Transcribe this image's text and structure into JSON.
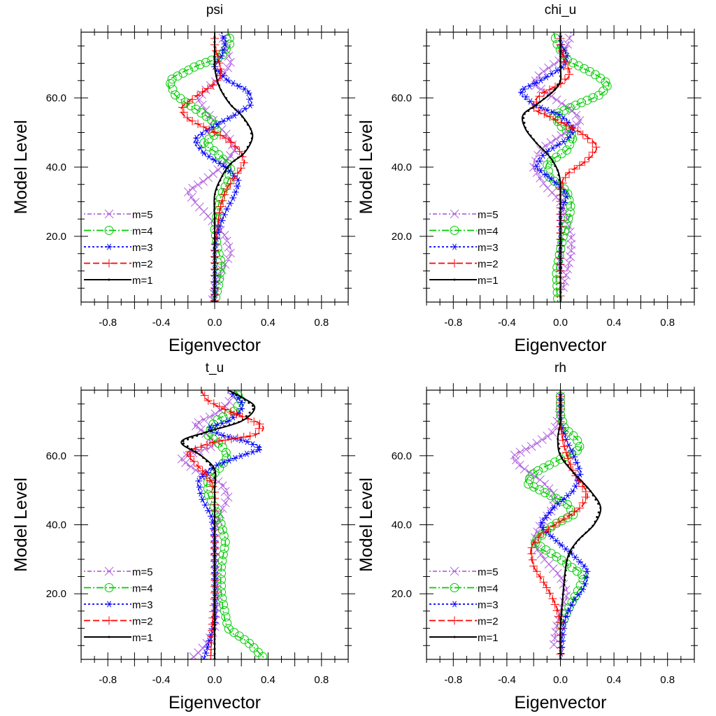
{
  "chart_data": [
    {
      "type": "line",
      "title": "psi",
      "xlabel": "Eigenvector",
      "ylabel": "Model Level",
      "xlim": [
        -1.0,
        1.0
      ],
      "ylim": [
        1,
        79
      ],
      "xticks": [
        "-0.8",
        "-0.4",
        "0.0",
        "0.4",
        "0.8"
      ],
      "yticks": [
        "20.0",
        "40.0",
        "60.0"
      ],
      "legend_placement": "lower-left",
      "series": [
        {
          "name": "m=5",
          "color": "#b266e0",
          "marker": "x",
          "x": [
            0.05,
            0.08,
            0.12,
            0.05,
            -0.05,
            -0.12,
            -0.08,
            0.0,
            0.1,
            0.15,
            0.05,
            -0.08,
            -0.2,
            -0.15,
            -0.03,
            0.08,
            0.12,
            0.05,
            0.0,
            -0.02
          ],
          "y": [
            79,
            75,
            70,
            66,
            63,
            60,
            57,
            53,
            49,
            45,
            40,
            36,
            33,
            30,
            25,
            20,
            15,
            10,
            5,
            1
          ]
        },
        {
          "name": "m=4",
          "color": "#00cc00",
          "marker": "o",
          "x": [
            0.1,
            0.12,
            0.05,
            -0.15,
            -0.34,
            -0.3,
            -0.15,
            0.0,
            0.02,
            -0.08,
            0.02,
            0.12,
            0.1,
            0.05,
            0.02,
            0.0,
            0.02,
            0.05,
            0.03,
            0.0
          ],
          "y": [
            79,
            76,
            72,
            69,
            65,
            61,
            57,
            53,
            50,
            47,
            44,
            40,
            36,
            32,
            27,
            22,
            17,
            12,
            6,
            1
          ]
        },
        {
          "name": "m=3",
          "color": "#0000ff",
          "marker": "*",
          "x": [
            0.05,
            0.08,
            0.05,
            0.0,
            0.1,
            0.25,
            0.27,
            0.15,
            0.0,
            -0.15,
            -0.08,
            0.08,
            0.18,
            0.15,
            0.08,
            0.03,
            0.0,
            0.0,
            0.0,
            0.0
          ],
          "y": [
            79,
            76,
            72,
            69,
            65,
            62,
            58,
            55,
            52,
            48,
            44,
            40,
            36,
            32,
            27,
            22,
            17,
            12,
            6,
            1
          ]
        },
        {
          "name": "m=2",
          "color": "#ff0000",
          "marker": "+",
          "x": [
            0.0,
            0.0,
            0.03,
            0.05,
            0.0,
            -0.12,
            -0.25,
            -0.2,
            -0.05,
            0.1,
            0.2,
            0.22,
            0.15,
            0.08,
            0.04,
            0.02,
            0.0,
            0.0,
            0.0,
            0.0
          ],
          "y": [
            79,
            75,
            71,
            67,
            64,
            61,
            57,
            54,
            51,
            48,
            44,
            41,
            37,
            33,
            28,
            22,
            17,
            12,
            6,
            1
          ]
        },
        {
          "name": "m=1",
          "color": "#000000",
          "marker": ".",
          "x": [
            0.0,
            0.0,
            0.0,
            0.02,
            0.05,
            0.12,
            0.2,
            0.27,
            0.28,
            0.22,
            0.12,
            0.05,
            0.0,
            0.0,
            0.0,
            0.0,
            0.0
          ],
          "y": [
            79,
            74,
            69,
            65,
            62,
            58,
            55,
            51,
            48,
            44,
            41,
            37,
            32,
            25,
            18,
            10,
            1
          ]
        }
      ]
    },
    {
      "type": "line",
      "title": "chi_u",
      "xlabel": "Eigenvector",
      "ylabel": "Model Level",
      "xlim": [
        -1.0,
        1.0
      ],
      "ylim": [
        1,
        79
      ],
      "xticks": [
        "-0.8",
        "-0.4",
        "0.0",
        "0.4",
        "0.8"
      ],
      "yticks": [
        "20.0",
        "40.0",
        "60.0"
      ],
      "legend_placement": "lower-left",
      "series": [
        {
          "name": "m=5",
          "color": "#b266e0",
          "marker": "x",
          "x": [
            0.08,
            0.05,
            0.0,
            -0.15,
            -0.2,
            -0.05,
            0.1,
            0.15,
            0.0,
            -0.15,
            -0.2,
            -0.12,
            0.0,
            0.05,
            0.08,
            0.08,
            0.05,
            0.02
          ],
          "y": [
            79,
            75,
            71,
            67,
            64,
            60,
            56,
            53,
            49,
            45,
            40,
            35,
            30,
            25,
            20,
            15,
            10,
            5
          ]
        },
        {
          "name": "m=4",
          "color": "#00cc00",
          "marker": "o",
          "x": [
            -0.05,
            -0.02,
            0.05,
            0.25,
            0.36,
            0.3,
            0.12,
            -0.05,
            0.0,
            0.1,
            0.05,
            -0.1,
            -0.08,
            0.05,
            0.08,
            0.02,
            -0.03,
            -0.02
          ],
          "y": [
            79,
            75,
            71,
            67,
            64,
            61,
            58,
            55,
            52,
            49,
            45,
            41,
            37,
            33,
            28,
            20,
            10,
            1
          ]
        },
        {
          "name": "m=3",
          "color": "#0000ff",
          "marker": "*",
          "x": [
            0.0,
            0.0,
            0.05,
            0.02,
            -0.15,
            -0.3,
            -0.2,
            0.0,
            0.1,
            0.05,
            -0.12,
            -0.18,
            -0.05,
            0.05,
            0.0,
            0.0,
            0.0
          ],
          "y": [
            79,
            76,
            72,
            69,
            65,
            62,
            58,
            55,
            51,
            48,
            44,
            40,
            36,
            32,
            27,
            20,
            10
          ]
        },
        {
          "name": "m=2",
          "color": "#ff0000",
          "marker": "+",
          "x": [
            0.0,
            0.0,
            0.03,
            0.07,
            0.0,
            -0.15,
            -0.2,
            -0.05,
            0.15,
            0.27,
            0.2,
            0.05,
            0.0,
            0.0,
            0.0,
            0.0,
            0.0
          ],
          "y": [
            79,
            75,
            71,
            67,
            64,
            61,
            57,
            54,
            50,
            46,
            42,
            38,
            34,
            28,
            20,
            10,
            1
          ]
        },
        {
          "name": "m=1",
          "color": "#000000",
          "marker": ".",
          "x": [
            0.0,
            0.0,
            0.0,
            0.0,
            -0.05,
            -0.18,
            -0.28,
            -0.26,
            -0.18,
            -0.08,
            -0.02,
            0.0,
            0.0,
            0.0,
            0.0
          ],
          "y": [
            79,
            74,
            69,
            65,
            62,
            58,
            55,
            51,
            47,
            43,
            39,
            35,
            28,
            15,
            1
          ]
        }
      ]
    },
    {
      "type": "line",
      "title": "t_u",
      "xlabel": "Eigenvector",
      "ylabel": "Model Level",
      "xlim": [
        -1.0,
        1.0
      ],
      "ylim": [
        1,
        79
      ],
      "xticks": [
        "-0.8",
        "-0.4",
        "0.0",
        "0.4",
        "0.8"
      ],
      "yticks": [
        "20.0",
        "40.0",
        "60.0"
      ],
      "legend_placement": "lower-left",
      "series": [
        {
          "name": "m=5",
          "color": "#b266e0",
          "marker": "x",
          "x": [
            0.15,
            0.1,
            0.0,
            -0.15,
            -0.05,
            0.0,
            -0.15,
            -0.25,
            -0.15,
            0.05,
            0.1,
            0.05,
            0.0,
            0.0,
            0.02,
            0.0,
            -0.05,
            -0.12,
            -0.18
          ],
          "y": [
            79,
            75,
            72,
            69,
            66,
            63,
            61,
            59,
            56,
            52,
            48,
            44,
            38,
            30,
            20,
            10,
            6,
            3,
            1
          ]
        },
        {
          "name": "m=4",
          "color": "#00cc00",
          "marker": "o",
          "x": [
            0.15,
            0.2,
            0.15,
            0.0,
            -0.05,
            0.05,
            0.1,
            0.05,
            -0.05,
            -0.05,
            0.0,
            0.05,
            0.08,
            0.05,
            0.05,
            0.1,
            0.25,
            0.38
          ],
          "y": [
            79,
            76,
            73,
            70,
            66,
            63,
            60,
            57,
            53,
            49,
            45,
            40,
            35,
            28,
            20,
            10,
            6,
            1
          ]
        },
        {
          "name": "m=3",
          "color": "#0000ff",
          "marker": "*",
          "x": [
            0.1,
            0.2,
            0.2,
            0.1,
            -0.05,
            0.05,
            0.25,
            0.35,
            0.2,
            0.0,
            -0.12,
            -0.1,
            -0.02,
            0.0,
            0.0,
            0.0,
            -0.05,
            -0.08
          ],
          "y": [
            79,
            76,
            73,
            70,
            68,
            66,
            64,
            62,
            60,
            57,
            53,
            48,
            42,
            35,
            25,
            12,
            5,
            1
          ]
        },
        {
          "name": "m=2",
          "color": "#ff0000",
          "marker": "+",
          "x": [
            -0.1,
            -0.05,
            0.1,
            0.35,
            0.3,
            0.0,
            -0.2,
            -0.15,
            -0.05,
            0.0,
            0.0,
            0.0,
            0.0,
            0.0,
            -0.02,
            -0.03
          ],
          "y": [
            79,
            76,
            73,
            69,
            66,
            64,
            61,
            58,
            54,
            50,
            45,
            38,
            30,
            20,
            10,
            1
          ]
        },
        {
          "name": "m=1",
          "color": "#000000",
          "marker": ".",
          "x": [
            0.1,
            0.2,
            0.3,
            0.2,
            -0.05,
            -0.25,
            -0.1,
            0.0,
            0.0,
            0.0,
            0.0,
            0.0,
            0.0
          ],
          "y": [
            79,
            77,
            74,
            70,
            67,
            64,
            60,
            56,
            50,
            42,
            30,
            15,
            1
          ]
        }
      ]
    },
    {
      "type": "line",
      "title": "rh",
      "xlabel": "Eigenvector",
      "ylabel": "Model Level",
      "xlim": [
        -1.0,
        1.0
      ],
      "ylim": [
        1,
        79
      ],
      "xticks": [
        "-0.8",
        "-0.4",
        "0.0",
        "0.4",
        "0.8"
      ],
      "yticks": [
        "20.0",
        "40.0",
        "60.0"
      ],
      "legend_placement": "lower-left",
      "series": [
        {
          "name": "m=5",
          "color": "#b266e0",
          "marker": "x",
          "x": [
            0.0,
            0.0,
            -0.05,
            -0.2,
            -0.35,
            -0.3,
            -0.15,
            -0.05,
            -0.05,
            -0.15,
            -0.2,
            -0.12,
            0.0,
            0.05,
            0.0,
            -0.03,
            -0.05
          ],
          "y": [
            79,
            73,
            67,
            63,
            60,
            57,
            53,
            49,
            45,
            40,
            35,
            30,
            25,
            20,
            15,
            10,
            5
          ]
        },
        {
          "name": "m=4",
          "color": "#00cc00",
          "marker": "o",
          "x": [
            0.0,
            0.0,
            0.03,
            0.12,
            0.15,
            0.0,
            -0.2,
            -0.25,
            -0.1,
            0.05,
            0.1,
            -0.05,
            -0.2,
            0.0,
            0.18,
            0.12,
            0.05,
            0.0
          ],
          "y": [
            79,
            72,
            68,
            65,
            62,
            59,
            55,
            52,
            49,
            46,
            43,
            40,
            35,
            30,
            25,
            20,
            15,
            10
          ]
        },
        {
          "name": "m=3",
          "color": "#0000ff",
          "marker": "*",
          "x": [
            0.0,
            0.0,
            0.05,
            0.1,
            0.15,
            0.1,
            -0.05,
            -0.15,
            -0.05,
            0.1,
            0.2,
            0.18,
            0.1,
            0.03,
            0.0
          ],
          "y": [
            79,
            70,
            64,
            60,
            55,
            50,
            45,
            40,
            36,
            31,
            27,
            22,
            18,
            12,
            1
          ]
        },
        {
          "name": "m=2",
          "color": "#ff0000",
          "marker": "+",
          "x": [
            0.0,
            0.0,
            0.02,
            0.05,
            0.1,
            0.2,
            0.15,
            0.0,
            -0.15,
            -0.22,
            -0.2,
            -0.12,
            -0.05,
            0.0,
            0.0
          ],
          "y": [
            79,
            70,
            64,
            60,
            55,
            49,
            45,
            41,
            37,
            33,
            28,
            23,
            18,
            12,
            1
          ]
        },
        {
          "name": "m=1",
          "color": "#000000",
          "marker": ".",
          "x": [
            0.0,
            0.0,
            -0.02,
            0.0,
            0.1,
            0.22,
            0.3,
            0.25,
            0.12,
            0.05,
            0.02,
            0.0,
            0.0
          ],
          "y": [
            79,
            70,
            65,
            60,
            55,
            50,
            45,
            40,
            35,
            30,
            20,
            10,
            1
          ]
        }
      ]
    }
  ]
}
